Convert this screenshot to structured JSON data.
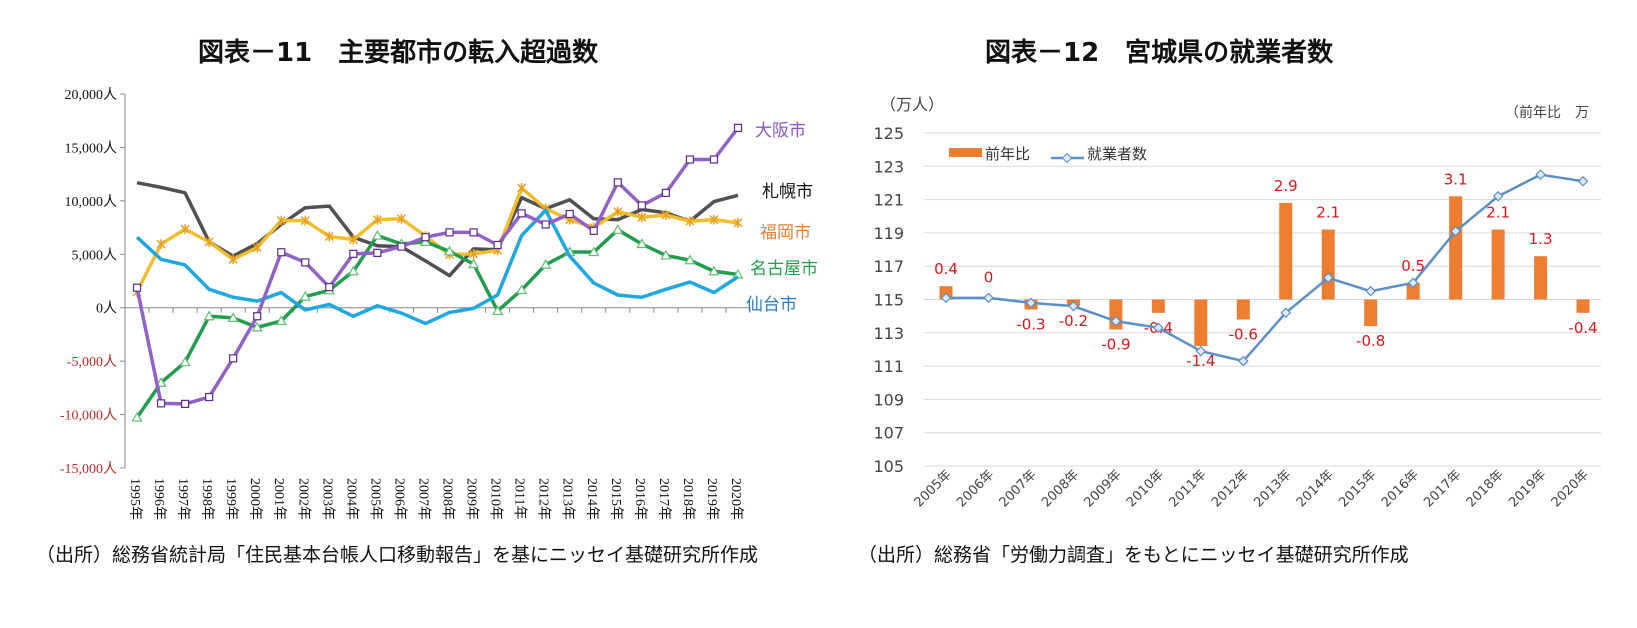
{
  "chart_data": [
    {
      "type": "line",
      "title": "図表－11　主要都市の転入超過数",
      "source": "（出所）総務省統計局「住民基本台帳人口移動報告」を基にニッセイ基礎研究所作成",
      "categories": [
        "1995年",
        "1996年",
        "1997年",
        "1998年",
        "1999年",
        "2000年",
        "2001年",
        "2002年",
        "2003年",
        "2004年",
        "2005年",
        "2006年",
        "2007年",
        "2008年",
        "2009年",
        "2010年",
        "2011年",
        "2012年",
        "2013年",
        "2014年",
        "2015年",
        "2016年",
        "2017年",
        "2018年",
        "2019年",
        "2020年"
      ],
      "ylim": [
        -15000,
        20000
      ],
      "yticks": [
        20000,
        15000,
        10000,
        5000,
        0,
        -5000,
        -10000,
        -15000
      ],
      "ytick_labels": [
        "20,000人",
        "15,000人",
        "10,000人",
        "5,000人",
        "0人",
        "-5,000人",
        "-10,000人",
        "-15,000人"
      ],
      "negative_tick_color": "#c0282d",
      "grid": false,
      "legend": "labels at line ends (right)",
      "series": [
        {
          "name": "札幌市",
          "color": "#505050",
          "label_color": "#111111",
          "marker": "none",
          "values": [
            11700,
            11260,
            10750,
            6160,
            4830,
            6000,
            7800,
            9360,
            9510,
            6600,
            5800,
            5700,
            4380,
            3000,
            5510,
            5420,
            10300,
            9270,
            10100,
            8320,
            8240,
            9190,
            8890,
            8090,
            9930,
            10520
          ]
        },
        {
          "name": "福岡市",
          "color": "#f2bd2c",
          "label_color": "#e0803a",
          "marker": "star",
          "values": [
            1480,
            5950,
            7350,
            6160,
            4530,
            5630,
            8150,
            8150,
            6670,
            6370,
            8240,
            8330,
            6700,
            4980,
            5040,
            5360,
            11200,
            9270,
            8240,
            7500,
            8980,
            8470,
            8680,
            8090,
            8240,
            7940
          ]
        },
        {
          "name": "名古屋市",
          "color": "#1f9e4c",
          "label_color": "#1f9e4c",
          "marker": "triangle",
          "values": [
            -10280,
            -7020,
            -5100,
            -800,
            -950,
            -1840,
            -1240,
            1040,
            1630,
            3410,
            6750,
            5960,
            6160,
            5270,
            4090,
            -300,
            1660,
            4030,
            5210,
            5210,
            7290,
            5960,
            4890,
            4440,
            3410,
            3110
          ]
        },
        {
          "name": "仙台市",
          "color": "#1fa7df",
          "label_color": "#2a7cc0",
          "marker": "none",
          "values": [
            6600,
            4530,
            4000,
            1720,
            980,
            620,
            1420,
            -210,
            300,
            -800,
            180,
            -500,
            -1480,
            -440,
            -60,
            1190,
            6750,
            9120,
            4830,
            2310,
            1190,
            980,
            1720,
            2400,
            1420,
            2900
          ]
        },
        {
          "name": "大阪市",
          "color": "#9460c8",
          "label_color": "#8a55c0",
          "marker": "square",
          "values": [
            1870,
            -8950,
            -9000,
            -8360,
            -4740,
            -800,
            5190,
            4240,
            1930,
            5040,
            5130,
            5720,
            6600,
            7050,
            7050,
            5870,
            8830,
            7790,
            8770,
            7200,
            11730,
            9570,
            10750,
            13870,
            13870,
            16830
          ]
        }
      ]
    },
    {
      "type": "bar+line",
      "title": "図表－12　宮城県の就業者数",
      "source": "（出所）総務省「労働力調査」をもとにニッセイ基礎研究所作成",
      "left_axis_unit": "（万人）",
      "right_axis_unit": "（前年比　万",
      "categories": [
        "2005年",
        "2006年",
        "2007年",
        "2008年",
        "2009年",
        "2010年",
        "2011年",
        "2012年",
        "2013年",
        "2014年",
        "2015年",
        "2016年",
        "2017年",
        "2018年",
        "2019年",
        "2020年"
      ],
      "ylim": [
        105,
        125
      ],
      "yticks": [
        "125",
        "123",
        "121",
        "119",
        "117",
        "115",
        "113",
        "111",
        "109",
        "107",
        "105"
      ],
      "secondary_ylim": [
        -5,
        5
      ],
      "grid": true,
      "legend": "top-left",
      "label_color": "#e0141e",
      "bar_series": {
        "name": "前年比",
        "color": "#ed7d31",
        "values": [
          0.4,
          0,
          -0.3,
          -0.2,
          -0.9,
          -0.4,
          -1.4,
          -0.6,
          2.9,
          2.1,
          -0.8,
          0.5,
          3.1,
          2.1,
          1.3,
          -0.4
        ],
        "labels": [
          "0.4",
          "0",
          "-0.3",
          "-0.2",
          "-0.9",
          "-0.4",
          "-1.4",
          "-0.6",
          "2.9",
          "2.1",
          "-0.8",
          "0.5",
          "3.1",
          "2.1",
          "1.3",
          "-0.4"
        ]
      },
      "line_series": {
        "name": "就業者数",
        "color": "#5b8fc7",
        "marker": "diamond",
        "values": [
          115.1,
          115.1,
          114.8,
          114.6,
          113.7,
          113.3,
          111.9,
          111.3,
          114.2,
          116.3,
          115.5,
          116.0,
          119.1,
          121.2,
          122.5,
          122.1
        ]
      }
    }
  ]
}
